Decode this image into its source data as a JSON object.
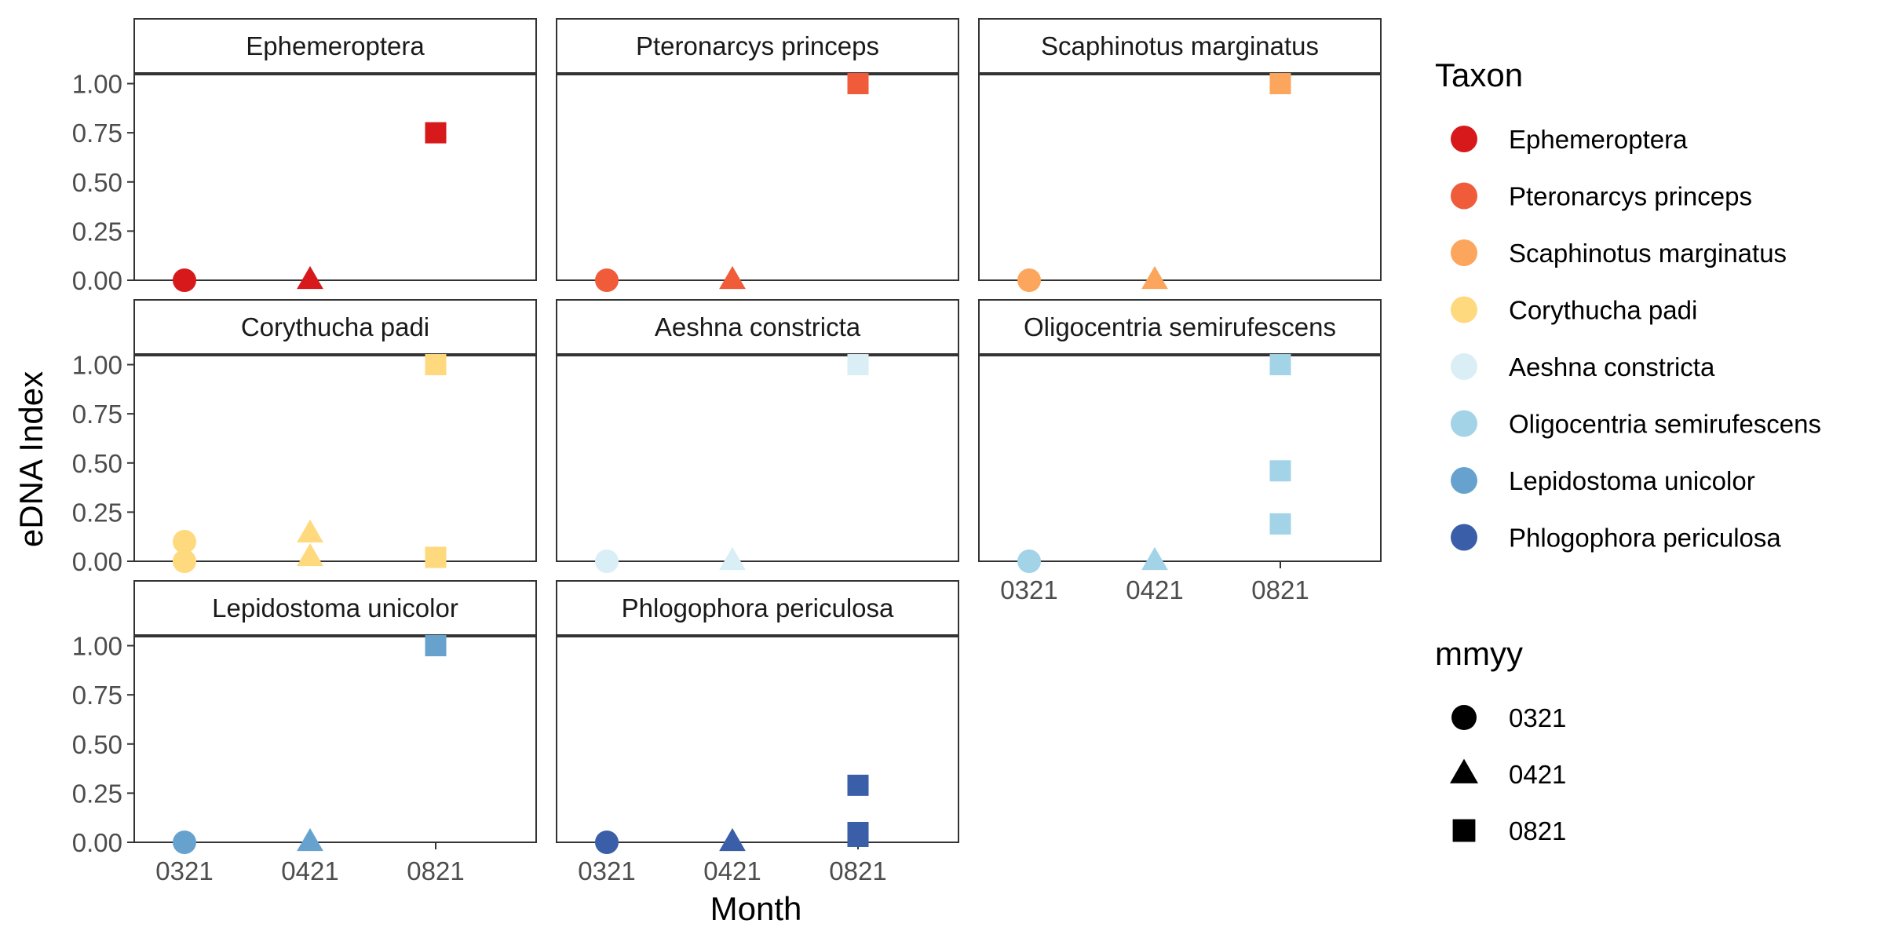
{
  "chart_data": {
    "type": "scatter",
    "xlabel": "Month",
    "ylabel": "eDNA Index",
    "x_categories": [
      "0321",
      "0421",
      "0821"
    ],
    "ylim": [
      0,
      1.05
    ],
    "y_ticks": [
      "0.00",
      "0.25",
      "0.50",
      "0.75",
      "1.00"
    ],
    "grid": false,
    "legend_placement": "right",
    "legends": [
      {
        "title": "Taxon",
        "entries": [
          {
            "label": "Ephemeroptera",
            "color": "#d7191c"
          },
          {
            "label": "Pteronarcys princeps",
            "color": "#f05b3a"
          },
          {
            "label": "Scaphinotus marginatus",
            "color": "#fca55d"
          },
          {
            "label": "Corythucha padi",
            "color": "#fed97d"
          },
          {
            "label": "Aeshna constricta",
            "color": "#d9eef5"
          },
          {
            "label": "Oligocentria semirufescens",
            "color": "#a3d3e6"
          },
          {
            "label": "Lepidostoma unicolor",
            "color": "#67a2cf"
          },
          {
            "label": "Phlogophora periculosa",
            "color": "#3a5ea7"
          }
        ]
      },
      {
        "title": "mmyy",
        "entries": [
          {
            "label": "0321",
            "shape": "circle"
          },
          {
            "label": "0421",
            "shape": "triangle"
          },
          {
            "label": "0821",
            "shape": "square"
          }
        ]
      }
    ],
    "facets": [
      {
        "title": "Ephemeroptera",
        "color": "#d7191c",
        "points": [
          {
            "x": "0321",
            "y": 0.0
          },
          {
            "x": "0421",
            "y": 0.0
          },
          {
            "x": "0821",
            "y": 0.75
          }
        ]
      },
      {
        "title": "Pteronarcys princeps",
        "color": "#f05b3a",
        "points": [
          {
            "x": "0321",
            "y": 0.0
          },
          {
            "x": "0421",
            "y": 0.0
          },
          {
            "x": "0821",
            "y": 1.0
          }
        ]
      },
      {
        "title": "Scaphinotus marginatus",
        "color": "#fca55d",
        "points": [
          {
            "x": "0321",
            "y": 0.0
          },
          {
            "x": "0421",
            "y": 0.0
          },
          {
            "x": "0821",
            "y": 1.0
          }
        ]
      },
      {
        "title": "Corythucha padi",
        "color": "#fed97d",
        "points": [
          {
            "x": "0321",
            "y": 0.1
          },
          {
            "x": "0321",
            "y": 0.0
          },
          {
            "x": "0421",
            "y": 0.14
          },
          {
            "x": "0421",
            "y": 0.02
          },
          {
            "x": "0821",
            "y": 1.0
          },
          {
            "x": "0821",
            "y": 0.02
          }
        ]
      },
      {
        "title": "Aeshna constricta",
        "color": "#d9eef5",
        "points": [
          {
            "x": "0321",
            "y": 0.0
          },
          {
            "x": "0421",
            "y": 0.0
          },
          {
            "x": "0821",
            "y": 1.0
          }
        ]
      },
      {
        "title": "Oligocentria semirufescens",
        "color": "#a3d3e6",
        "points": [
          {
            "x": "0321",
            "y": 0.0
          },
          {
            "x": "0421",
            "y": 0.0
          },
          {
            "x": "0821",
            "y": 1.0
          },
          {
            "x": "0821",
            "y": 0.46
          },
          {
            "x": "0821",
            "y": 0.19
          }
        ]
      },
      {
        "title": "Lepidostoma unicolor",
        "color": "#67a2cf",
        "points": [
          {
            "x": "0321",
            "y": 0.0
          },
          {
            "x": "0421",
            "y": 0.0
          },
          {
            "x": "0821",
            "y": 1.0
          }
        ]
      },
      {
        "title": "Phlogophora periculosa",
        "color": "#3a5ea7",
        "points": [
          {
            "x": "0321",
            "y": 0.0
          },
          {
            "x": "0421",
            "y": 0.0
          },
          {
            "x": "0821",
            "y": 0.29
          },
          {
            "x": "0821",
            "y": 0.05
          },
          {
            "x": "0821",
            "y": 0.03
          }
        ]
      }
    ]
  }
}
